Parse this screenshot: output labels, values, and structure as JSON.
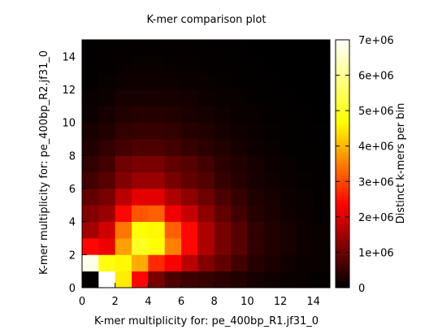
{
  "chart_data": {
    "type": "heatmap",
    "title": "K-mer comparison plot",
    "xlabel": "K-mer multiplicity for: pe_400bp_R1.jf31_0",
    "ylabel": "K-mer multiplicity for: pe_400bp_R2.jf31_0",
    "colorbar_label": "Distinct k-mers per bin",
    "xlim": [
      0,
      15
    ],
    "ylim": [
      0,
      15
    ],
    "x_ticks": [
      "0",
      "2",
      "4",
      "6",
      "8",
      "10",
      "12",
      "14"
    ],
    "y_ticks": [
      "0",
      "2",
      "4",
      "6",
      "8",
      "10",
      "12",
      "14"
    ],
    "colorbar_range": [
      0,
      7000000
    ],
    "colorbar_ticks": [
      "0",
      "1e+06",
      "2e+06",
      "3e+06",
      "4e+06",
      "5e+06",
      "6e+06",
      "7e+06"
    ],
    "colormap": "hot",
    "bin_size": 1,
    "values_rows_from_y0": [
      [
        0.05,
        7.0,
        4.5,
        2.4,
        1.1,
        0.7,
        0.55,
        0.5,
        0.4,
        0.3,
        0.2,
        0.15,
        0.1,
        0.07,
        0.05
      ],
      [
        6.8,
        4.8,
        4.6,
        3.9,
        2.7,
        2.3,
        1.7,
        1.2,
        0.9,
        0.6,
        0.35,
        0.25,
        0.15,
        0.1,
        0.08
      ],
      [
        2.4,
        2.2,
        3.8,
        5.0,
        4.7,
        3.5,
        2.4,
        1.6,
        1.1,
        0.8,
        0.45,
        0.3,
        0.2,
        0.12,
        0.08
      ],
      [
        1.5,
        1.9,
        3.4,
        4.7,
        4.6,
        3.2,
        2.4,
        1.6,
        1.1,
        0.8,
        0.45,
        0.3,
        0.2,
        0.12,
        0.08
      ],
      [
        1.2,
        1.4,
        2.4,
        3.1,
        3.2,
        2.2,
        1.8,
        1.3,
        0.9,
        0.6,
        0.35,
        0.25,
        0.15,
        0.1,
        0.06
      ],
      [
        0.9,
        1.1,
        1.7,
        2.1,
        2.1,
        1.6,
        1.3,
        1.0,
        0.7,
        0.5,
        0.3,
        0.2,
        0.12,
        0.08,
        0.05
      ],
      [
        0.6,
        0.8,
        1.2,
        1.4,
        1.4,
        1.1,
        0.9,
        0.75,
        0.5,
        0.35,
        0.22,
        0.15,
        0.1,
        0.06,
        0.04
      ],
      [
        0.45,
        0.6,
        1.0,
        1.1,
        1.1,
        0.9,
        0.8,
        0.6,
        0.4,
        0.3,
        0.2,
        0.12,
        0.08,
        0.05,
        0.03
      ],
      [
        0.3,
        0.45,
        0.6,
        0.7,
        0.7,
        0.6,
        0.5,
        0.4,
        0.3,
        0.2,
        0.12,
        0.08,
        0.05,
        0.03,
        0.02
      ],
      [
        0.2,
        0.3,
        0.45,
        0.5,
        0.5,
        0.45,
        0.35,
        0.3,
        0.2,
        0.15,
        0.1,
        0.06,
        0.04,
        0.02,
        0.02
      ],
      [
        0.12,
        0.2,
        0.3,
        0.35,
        0.35,
        0.3,
        0.25,
        0.2,
        0.15,
        0.1,
        0.07,
        0.04,
        0.03,
        0.02,
        0.01
      ],
      [
        0.08,
        0.12,
        0.2,
        0.22,
        0.22,
        0.2,
        0.18,
        0.14,
        0.1,
        0.07,
        0.05,
        0.03,
        0.02,
        0.01,
        0.01
      ],
      [
        0.05,
        0.08,
        0.12,
        0.14,
        0.14,
        0.12,
        0.1,
        0.08,
        0.06,
        0.04,
        0.03,
        0.02,
        0.01,
        0.01,
        0.0
      ],
      [
        0.03,
        0.05,
        0.07,
        0.08,
        0.08,
        0.07,
        0.06,
        0.05,
        0.04,
        0.03,
        0.02,
        0.01,
        0.01,
        0.0,
        0.0
      ],
      [
        0.02,
        0.03,
        0.04,
        0.05,
        0.05,
        0.04,
        0.04,
        0.03,
        0.02,
        0.02,
        0.01,
        0.01,
        0.0,
        0.0,
        0.0
      ]
    ],
    "values_unit": "1e+06",
    "grid": false,
    "legend": "colorbar-right"
  }
}
